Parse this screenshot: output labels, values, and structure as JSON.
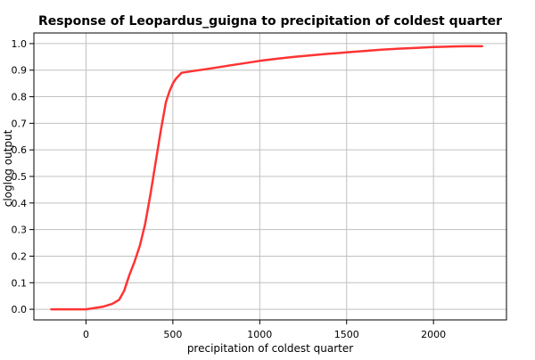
{
  "chart_data": {
    "type": "line",
    "title": "Response of Leopardus_guigna to precipitation of coldest quarter",
    "xlabel": "precipitation of coldest quarter",
    "ylabel": "cloglog output",
    "xlim": [
      -300,
      2420
    ],
    "ylim": [
      -0.04,
      1.04
    ],
    "x_ticks": [
      0,
      500,
      1000,
      1500,
      2000
    ],
    "y_ticks": [
      0.0,
      0.1,
      0.2,
      0.3,
      0.4,
      0.5,
      0.6,
      0.7,
      0.8,
      0.9,
      1.0
    ],
    "x_tick_labels": [
      "0",
      "500",
      "1000",
      "1500",
      "2000"
    ],
    "y_tick_labels": [
      "0.0",
      "0.1",
      "0.2",
      "0.3",
      "0.4",
      "0.5",
      "0.6",
      "0.7",
      "0.8",
      "0.9",
      "1.0"
    ],
    "grid": true,
    "legend": "none",
    "series": [
      {
        "color": "#ff3333",
        "x": [
          -200,
          -100,
          0,
          50,
          100,
          150,
          190,
          220,
          250,
          280,
          310,
          340,
          370,
          400,
          430,
          460,
          480,
          500,
          520,
          550,
          600,
          700,
          800,
          900,
          1000,
          1100,
          1200,
          1300,
          1400,
          1500,
          1600,
          1700,
          1800,
          1900,
          2000,
          2100,
          2200,
          2280
        ],
        "y": [
          0.0,
          0.0,
          0.0,
          0.005,
          0.01,
          0.02,
          0.035,
          0.07,
          0.13,
          0.18,
          0.24,
          0.32,
          0.43,
          0.55,
          0.67,
          0.78,
          0.82,
          0.85,
          0.87,
          0.89,
          0.895,
          0.905,
          0.915,
          0.925,
          0.935,
          0.943,
          0.95,
          0.956,
          0.962,
          0.967,
          0.972,
          0.977,
          0.981,
          0.984,
          0.987,
          0.989,
          0.99,
          0.99
        ]
      }
    ]
  }
}
